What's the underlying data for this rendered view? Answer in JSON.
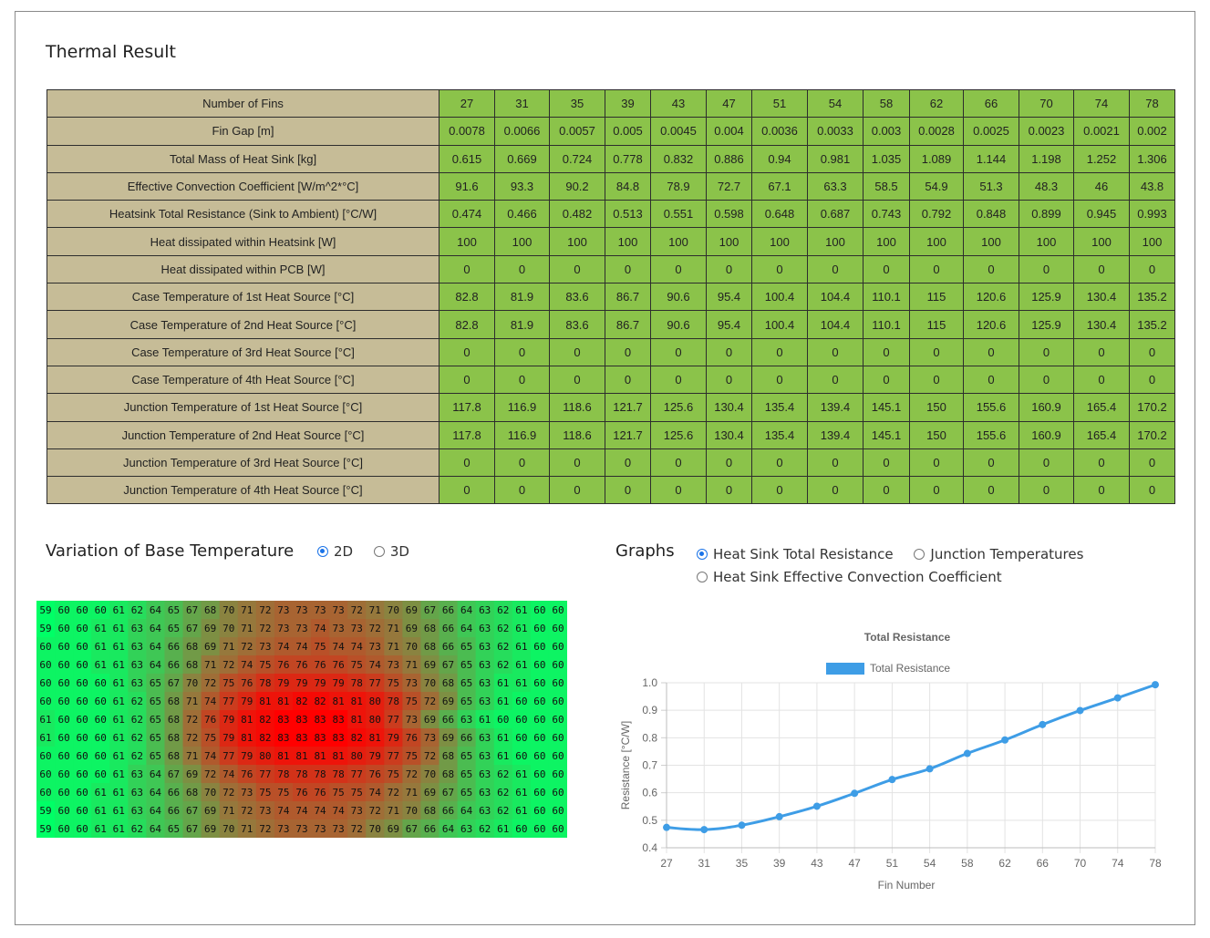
{
  "page_title": "Thermal Result",
  "table": {
    "rows": [
      {
        "label": "Number of Fins",
        "values": [
          "27",
          "31",
          "35",
          "39",
          "43",
          "47",
          "51",
          "54",
          "58",
          "62",
          "66",
          "70",
          "74",
          "78"
        ]
      },
      {
        "label": "Fin Gap [m]",
        "values": [
          "0.0078",
          "0.0066",
          "0.0057",
          "0.005",
          "0.0045",
          "0.004",
          "0.0036",
          "0.0033",
          "0.003",
          "0.0028",
          "0.0025",
          "0.0023",
          "0.0021",
          "0.002"
        ]
      },
      {
        "label": "Total Mass of Heat Sink [kg]",
        "values": [
          "0.615",
          "0.669",
          "0.724",
          "0.778",
          "0.832",
          "0.886",
          "0.94",
          "0.981",
          "1.035",
          "1.089",
          "1.144",
          "1.198",
          "1.252",
          "1.306"
        ]
      },
      {
        "label": "Effective Convection Coefficient [W/m^2*°C]",
        "values": [
          "91.6",
          "93.3",
          "90.2",
          "84.8",
          "78.9",
          "72.7",
          "67.1",
          "63.3",
          "58.5",
          "54.9",
          "51.3",
          "48.3",
          "46",
          "43.8"
        ]
      },
      {
        "label": "Heatsink Total Resistance (Sink to Ambient) [°C/W]",
        "values": [
          "0.474",
          "0.466",
          "0.482",
          "0.513",
          "0.551",
          "0.598",
          "0.648",
          "0.687",
          "0.743",
          "0.792",
          "0.848",
          "0.899",
          "0.945",
          "0.993"
        ]
      },
      {
        "label": "Heat dissipated within Heatsink [W]",
        "values": [
          "100",
          "100",
          "100",
          "100",
          "100",
          "100",
          "100",
          "100",
          "100",
          "100",
          "100",
          "100",
          "100",
          "100"
        ]
      },
      {
        "label": "Heat dissipated within PCB [W]",
        "values": [
          "0",
          "0",
          "0",
          "0",
          "0",
          "0",
          "0",
          "0",
          "0",
          "0",
          "0",
          "0",
          "0",
          "0"
        ]
      },
      {
        "label": "Case Temperature of 1st Heat Source [°C]",
        "values": [
          "82.8",
          "81.9",
          "83.6",
          "86.7",
          "90.6",
          "95.4",
          "100.4",
          "104.4",
          "110.1",
          "115",
          "120.6",
          "125.9",
          "130.4",
          "135.2"
        ]
      },
      {
        "label": "Case Temperature of 2nd Heat Source [°C]",
        "values": [
          "82.8",
          "81.9",
          "83.6",
          "86.7",
          "90.6",
          "95.4",
          "100.4",
          "104.4",
          "110.1",
          "115",
          "120.6",
          "125.9",
          "130.4",
          "135.2"
        ]
      },
      {
        "label": "Case Temperature of 3rd Heat Source [°C]",
        "values": [
          "0",
          "0",
          "0",
          "0",
          "0",
          "0",
          "0",
          "0",
          "0",
          "0",
          "0",
          "0",
          "0",
          "0"
        ]
      },
      {
        "label": "Case Temperature of 4th Heat Source [°C]",
        "values": [
          "0",
          "0",
          "0",
          "0",
          "0",
          "0",
          "0",
          "0",
          "0",
          "0",
          "0",
          "0",
          "0",
          "0"
        ]
      },
      {
        "label": "Junction Temperature of 1st Heat Source [°C]",
        "values": [
          "117.8",
          "116.9",
          "118.6",
          "121.7",
          "125.6",
          "130.4",
          "135.4",
          "139.4",
          "145.1",
          "150",
          "155.6",
          "160.9",
          "165.4",
          "170.2"
        ]
      },
      {
        "label": "Junction Temperature of 2nd Heat Source [°C]",
        "values": [
          "117.8",
          "116.9",
          "118.6",
          "121.7",
          "125.6",
          "130.4",
          "135.4",
          "139.4",
          "145.1",
          "150",
          "155.6",
          "160.9",
          "165.4",
          "170.2"
        ]
      },
      {
        "label": "Junction Temperature of 3rd Heat Source [°C]",
        "values": [
          "0",
          "0",
          "0",
          "0",
          "0",
          "0",
          "0",
          "0",
          "0",
          "0",
          "0",
          "0",
          "0",
          "0"
        ]
      },
      {
        "label": "Junction Temperature of 4th Heat Source [°C]",
        "values": [
          "0",
          "0",
          "0",
          "0",
          "0",
          "0",
          "0",
          "0",
          "0",
          "0",
          "0",
          "0",
          "0",
          "0"
        ]
      }
    ]
  },
  "base_temp": {
    "title": "Variation of Base Temperature",
    "options": [
      {
        "label": "2D",
        "checked": true
      },
      {
        "label": "3D",
        "checked": false
      }
    ],
    "heatmap": {
      "min": 59,
      "max": 83,
      "color_low": "#00ff66",
      "color_high": "#ff0000",
      "grid": [
        [
          59,
          60,
          60,
          60,
          61,
          62,
          64,
          65,
          67,
          68,
          70,
          71,
          72,
          73,
          73,
          73,
          73,
          72,
          71,
          70,
          69,
          67,
          66,
          64,
          63,
          62,
          61,
          60,
          60
        ],
        [
          59,
          60,
          60,
          61,
          61,
          63,
          64,
          65,
          67,
          69,
          70,
          71,
          72,
          73,
          73,
          74,
          73,
          73,
          72,
          71,
          69,
          68,
          66,
          64,
          63,
          62,
          61,
          60,
          60
        ],
        [
          60,
          60,
          60,
          61,
          61,
          63,
          64,
          66,
          68,
          69,
          71,
          72,
          73,
          74,
          74,
          75,
          74,
          74,
          73,
          71,
          70,
          68,
          66,
          65,
          63,
          62,
          61,
          60,
          60
        ],
        [
          60,
          60,
          60,
          61,
          61,
          63,
          64,
          66,
          68,
          71,
          72,
          74,
          75,
          76,
          76,
          76,
          76,
          75,
          74,
          73,
          71,
          69,
          67,
          65,
          63,
          62,
          61,
          60,
          60
        ],
        [
          60,
          60,
          60,
          60,
          61,
          63,
          65,
          67,
          70,
          72,
          75,
          76,
          78,
          79,
          79,
          79,
          79,
          78,
          77,
          75,
          73,
          70,
          68,
          65,
          63,
          61,
          61,
          60,
          60
        ],
        [
          60,
          60,
          60,
          60,
          61,
          62,
          65,
          68,
          71,
          74,
          77,
          79,
          81,
          81,
          82,
          82,
          81,
          81,
          80,
          78,
          75,
          72,
          69,
          65,
          63,
          61,
          60,
          60,
          60
        ],
        [
          61,
          60,
          60,
          60,
          61,
          62,
          65,
          68,
          72,
          76,
          79,
          81,
          82,
          83,
          83,
          83,
          83,
          81,
          80,
          77,
          73,
          69,
          66,
          63,
          61,
          60,
          60,
          60,
          60
        ],
        [
          61,
          60,
          60,
          60,
          61,
          62,
          65,
          68,
          72,
          75,
          79,
          81,
          82,
          83,
          83,
          83,
          83,
          82,
          81,
          79,
          76,
          73,
          69,
          66,
          63,
          61,
          60,
          60,
          60
        ],
        [
          60,
          60,
          60,
          60,
          61,
          62,
          65,
          68,
          71,
          74,
          77,
          79,
          80,
          81,
          81,
          81,
          81,
          80,
          79,
          77,
          75,
          72,
          68,
          65,
          63,
          61,
          60,
          60,
          60
        ],
        [
          60,
          60,
          60,
          60,
          61,
          63,
          64,
          67,
          69,
          72,
          74,
          76,
          77,
          78,
          78,
          78,
          78,
          77,
          76,
          75,
          72,
          70,
          68,
          65,
          63,
          62,
          61,
          60,
          60
        ],
        [
          60,
          60,
          60,
          61,
          61,
          63,
          64,
          66,
          68,
          70,
          72,
          73,
          75,
          75,
          76,
          76,
          75,
          75,
          74,
          72,
          71,
          69,
          67,
          65,
          63,
          62,
          61,
          60,
          60
        ],
        [
          59,
          60,
          60,
          61,
          61,
          63,
          64,
          66,
          67,
          69,
          71,
          72,
          73,
          74,
          74,
          74,
          74,
          73,
          72,
          71,
          70,
          68,
          66,
          64,
          63,
          62,
          61,
          60,
          60
        ],
        [
          59,
          60,
          60,
          61,
          61,
          62,
          64,
          65,
          67,
          69,
          70,
          71,
          72,
          73,
          73,
          73,
          73,
          72,
          70,
          69,
          67,
          66,
          64,
          63,
          62,
          61,
          60,
          60,
          60
        ]
      ]
    }
  },
  "graphs": {
    "title": "Graphs",
    "options": [
      {
        "label": "Heat Sink Total Resistance",
        "checked": true
      },
      {
        "label": "Junction Temperatures",
        "checked": false
      },
      {
        "label": "Heat Sink Effective Convection Coefficient",
        "checked": false
      }
    ]
  },
  "chart_data": {
    "type": "line",
    "title": "Total Resistance",
    "legend": "Total Resistance",
    "legend_position": "top",
    "series_color": "#3e9de6",
    "xlabel": "Fin Number",
    "ylabel": "Resistance [°C/W]",
    "categories": [
      "27",
      "31",
      "35",
      "39",
      "43",
      "47",
      "51",
      "54",
      "58",
      "62",
      "66",
      "70",
      "74",
      "78"
    ],
    "series": [
      {
        "name": "Total Resistance",
        "values": [
          0.474,
          0.466,
          0.482,
          0.513,
          0.551,
          0.598,
          0.648,
          0.687,
          0.743,
          0.792,
          0.848,
          0.899,
          0.945,
          0.993
        ]
      }
    ],
    "ylim": [
      0.4,
      1.0
    ],
    "yticks": [
      "0.4",
      "0.5",
      "0.6",
      "0.7",
      "0.8",
      "0.9",
      "1.0"
    ],
    "grid": true
  }
}
